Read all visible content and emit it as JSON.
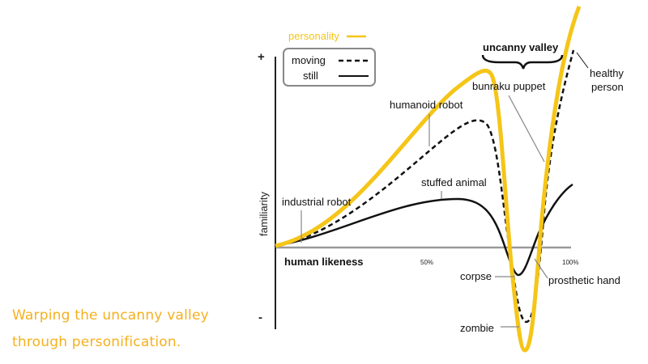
{
  "caption": {
    "line1": "Warping the uncanny valley",
    "line2": "through personification."
  },
  "axes": {
    "y_label": "familiarity",
    "x_label": "human likeness",
    "y_plus": "+",
    "y_minus": "-",
    "tick_50": "50%",
    "tick_100": "100%"
  },
  "legend": {
    "personality": "personality",
    "moving": "moving",
    "still": "still"
  },
  "annotations": {
    "uncanny_valley": "uncanny valley",
    "healthy_person_1": "healthy",
    "healthy_person_2": "person",
    "bunraku_puppet": "bunraku puppet",
    "humanoid_robot": "humanoid robot",
    "stuffed_animal": "stuffed animal",
    "industrial_robot": "industrial robot",
    "corpse": "corpse",
    "prosthetic_hand": "prosthetic hand",
    "zombie": "zombie"
  },
  "colors": {
    "personality": "#f5c518",
    "caption": "#f5b01e",
    "axis": "#222222",
    "baseline": "#999999"
  }
}
